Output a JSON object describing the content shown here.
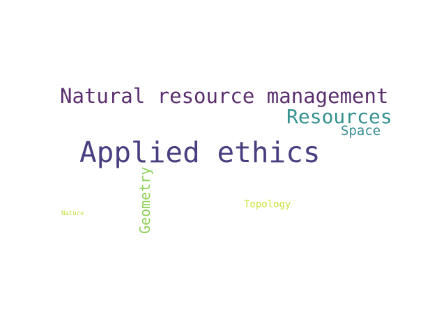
{
  "cloud": {
    "background": "#ffffff",
    "words": [
      {
        "id": "natural",
        "text": "Natural resource management",
        "color": "#5a2d6e",
        "orientation": "horizontal"
      },
      {
        "id": "resources",
        "text": "Resources",
        "color": "#33918f",
        "orientation": "horizontal"
      },
      {
        "id": "space",
        "text": "Space",
        "color": "#3a8e93",
        "orientation": "horizontal"
      },
      {
        "id": "applied",
        "text": "Applied ethics",
        "color": "#483f80",
        "orientation": "horizontal"
      },
      {
        "id": "geometry",
        "text": "Geometry",
        "color": "#8fd15a",
        "orientation": "vertical"
      },
      {
        "id": "topology",
        "text": "Topology",
        "color": "#cde03a",
        "orientation": "horizontal"
      },
      {
        "id": "nature",
        "text": "Nature",
        "color": "#c9de3c",
        "orientation": "horizontal"
      }
    ]
  }
}
